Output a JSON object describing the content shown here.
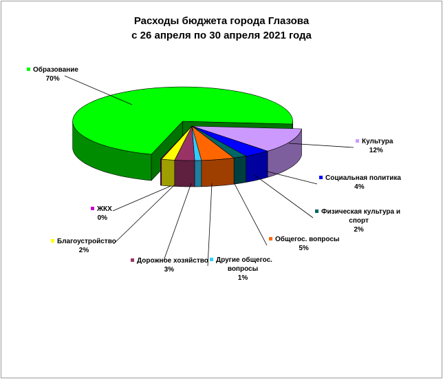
{
  "chart_data": {
    "type": "pie",
    "title_lines": [
      "Расходы бюджета города Глазова",
      "с 26 апреля по 30 апреля 2021 года"
    ],
    "slices": [
      {
        "name": "Образование",
        "value": 70,
        "label_lines": [
          "Образование"
        ],
        "pct": "70%",
        "color": "#00ff00"
      },
      {
        "name": "Культура",
        "value": 12,
        "label_lines": [
          "Культура"
        ],
        "pct": "12%",
        "color": "#cc99ff"
      },
      {
        "name": "Социальная политика",
        "value": 4,
        "label_lines": [
          "Социальная политика"
        ],
        "pct": "4%",
        "color": "#0000ff"
      },
      {
        "name": "Физическая культура и спорт",
        "value": 2,
        "label_lines": [
          "Физическая культура и",
          "спорт"
        ],
        "pct": "2%",
        "color": "#006666"
      },
      {
        "name": "Общегос. вопросы",
        "value": 5,
        "label_lines": [
          "Общегос. вопросы"
        ],
        "pct": "5%",
        "color": "#ff6600"
      },
      {
        "name": "Другие общегос. вопросы",
        "value": 1,
        "label_lines": [
          "Другие общегос.",
          "вопросы"
        ],
        "pct": "1%",
        "color": "#33ccff"
      },
      {
        "name": "Дорожное хозяйство",
        "value": 3,
        "label_lines": [
          "Дорожное хозяйство"
        ],
        "pct": "3%",
        "color": "#993366"
      },
      {
        "name": "Благоустройство",
        "value": 2,
        "label_lines": [
          "Благоустройство"
        ],
        "pct": "2%",
        "color": "#ffff00"
      },
      {
        "name": "ЖКХ",
        "value": 0,
        "label_lines": [
          "ЖКХ"
        ],
        "pct": "0%",
        "color": "#cc00cc"
      }
    ],
    "legend": "none (category labels with leader lines)"
  }
}
